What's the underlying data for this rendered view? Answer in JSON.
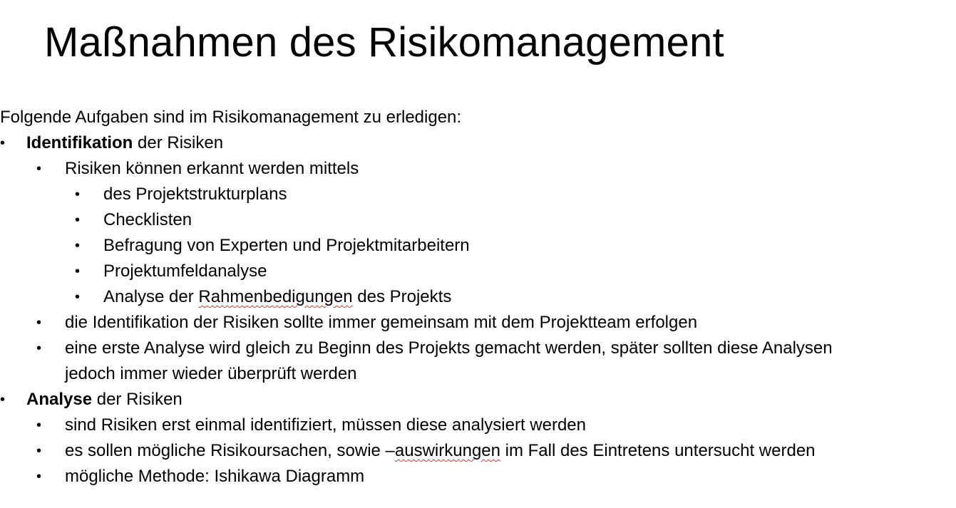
{
  "title": "Maßnahmen des Risikomanagement",
  "intro": "Folgende Aufgaben sind im Risikomanagement zu erledigen:",
  "bullet_char": "•",
  "identification": {
    "label_bold": "Identifikation",
    "label_rest": " der Risiken",
    "sub1": "Risiken können erkannt werden mittels",
    "methods": {
      "m1": "des Projektstrukturplans",
      "m2": "Checklisten",
      "m3": "Befragung von Experten und Projektmitarbeitern",
      "m4": "Projektumfeldanalyse",
      "m5_pre": "Analyse der ",
      "m5_flagged": "Rahmenbedigungen",
      "m5_post": " des Projekts"
    },
    "sub2": "die Identifikation der Risiken sollte immer gemeinsam mit dem Projektteam erfolgen",
    "sub3_line1": "eine erste Analyse wird gleich zu Beginn des Projekts gemacht werden, später sollten diese Analysen",
    "sub3_line2": "jedoch immer wieder überprüft werden"
  },
  "analysis": {
    "label_bold": "Analyse",
    "label_rest": " der Risiken",
    "sub1": "sind Risiken erst einmal identifiziert, müssen diese analysiert werden",
    "sub2_pre": "es sollen mögliche Risikoursachen, sowie –",
    "sub2_flagged": "auswirkungen",
    "sub2_post": " im Fall des Eintretens untersucht werden",
    "sub3": "mögliche Methode: Ishikawa Diagramm"
  }
}
